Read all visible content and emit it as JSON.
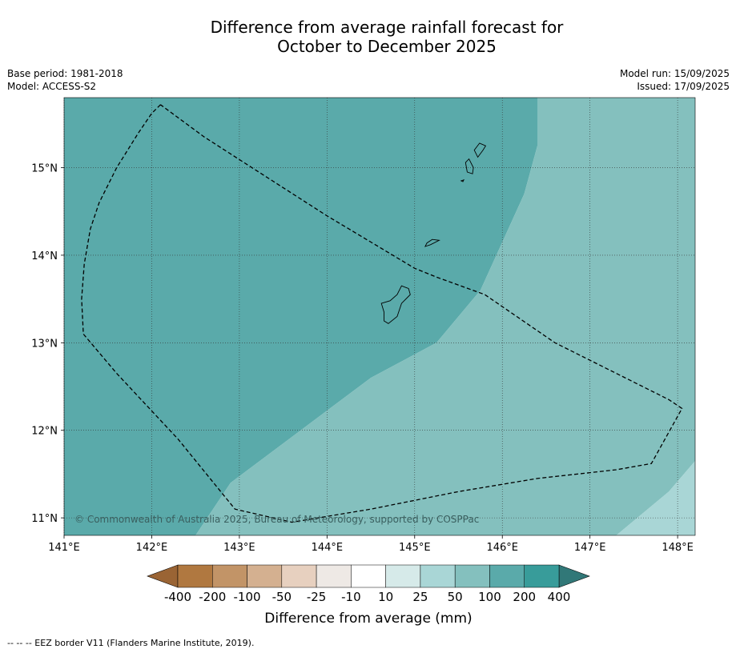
{
  "title_line1": "Difference from average rainfall forecast for",
  "title_line2": "October to December 2025",
  "base_period": "Base period: 1981-2018",
  "model": "Model: ACCESS-S2",
  "model_run": "Model run: 15/09/2025",
  "issued": "Issued: 17/09/2025",
  "copyright": "© Commonwealth of Australia 2025, Bureau of Meteorology, supported by COSPPac",
  "footer": "--  --  -- EEZ border V11 (Flanders Marine Institute, 2019).",
  "map": {
    "lon_range": [
      141,
      148.2
    ],
    "lat_range": [
      10.8,
      15.8
    ],
    "lon_ticks": [
      141,
      142,
      143,
      144,
      145,
      146,
      147,
      148
    ],
    "lon_labels": [
      "141°E",
      "142°E",
      "143°E",
      "144°E",
      "145°E",
      "146°E",
      "147°E",
      "148°E"
    ],
    "lat_ticks": [
      11,
      12,
      13,
      14,
      15
    ],
    "lat_labels": [
      "11°N",
      "12°N",
      "13°N",
      "14°N",
      "15°N"
    ],
    "grid": true,
    "colors": {
      "c100_200": "#5aaaaa",
      "c50_100": "#84c0be",
      "c25_50": "#a9d6d6"
    },
    "zones": [
      {
        "category": "100 to 200",
        "color_key": "c100_200",
        "polygon": [
          [
            141,
            10.8
          ],
          [
            141,
            15.8
          ],
          [
            146.4,
            15.8
          ],
          [
            146.4,
            15.25
          ],
          [
            146.25,
            14.7
          ],
          [
            145.75,
            13.6
          ],
          [
            145.25,
            13.0
          ],
          [
            144.5,
            12.6
          ],
          [
            143.7,
            12.0
          ],
          [
            142.9,
            11.4
          ],
          [
            142.5,
            10.8
          ]
        ]
      },
      {
        "category": "50 to 100",
        "color_key": "c50_100",
        "polygon": [
          [
            142.5,
            10.8
          ],
          [
            142.9,
            11.4
          ],
          [
            143.7,
            12.0
          ],
          [
            144.5,
            12.6
          ],
          [
            145.25,
            13.0
          ],
          [
            145.75,
            13.6
          ],
          [
            146.25,
            14.7
          ],
          [
            146.4,
            15.25
          ],
          [
            146.4,
            15.8
          ],
          [
            148.2,
            15.8
          ],
          [
            148.2,
            11.65
          ],
          [
            147.9,
            11.3
          ],
          [
            147.3,
            10.8
          ]
        ]
      },
      {
        "category": "25 to 50",
        "color_key": "c25_50",
        "polygon": [
          [
            147.3,
            10.8
          ],
          [
            147.9,
            11.3
          ],
          [
            148.2,
            11.65
          ],
          [
            148.2,
            10.8
          ]
        ]
      }
    ],
    "eez": [
      [
        142.1,
        15.72
      ],
      [
        142.0,
        15.62
      ],
      [
        141.85,
        15.4
      ],
      [
        141.6,
        15.0
      ],
      [
        141.4,
        14.6
      ],
      [
        141.3,
        14.3
      ],
      [
        141.23,
        13.9
      ],
      [
        141.2,
        13.5
      ],
      [
        141.22,
        13.1
      ],
      [
        141.6,
        12.65
      ],
      [
        142.3,
        11.9
      ],
      [
        142.95,
        11.1
      ],
      [
        143.6,
        10.95
      ],
      [
        144.5,
        11.1
      ],
      [
        145.5,
        11.3
      ],
      [
        146.4,
        11.45
      ],
      [
        147.3,
        11.55
      ],
      [
        147.7,
        11.62
      ],
      [
        148.05,
        12.25
      ],
      [
        147.9,
        12.35
      ],
      [
        146.6,
        13.0
      ],
      [
        145.8,
        13.55
      ],
      [
        145.25,
        13.75
      ],
      [
        145.0,
        13.85
      ],
      [
        144.5,
        14.15
      ],
      [
        144.0,
        14.45
      ],
      [
        143.3,
        14.9
      ],
      [
        142.6,
        15.35
      ],
      [
        142.1,
        15.72
      ]
    ],
    "islands": [
      [
        [
          144.65,
          13.25
        ],
        [
          144.7,
          13.22
        ],
        [
          144.8,
          13.3
        ],
        [
          144.85,
          13.45
        ],
        [
          144.95,
          13.55
        ],
        [
          144.93,
          13.62
        ],
        [
          144.85,
          13.65
        ],
        [
          144.8,
          13.55
        ],
        [
          144.72,
          13.48
        ],
        [
          144.62,
          13.45
        ],
        [
          144.65,
          13.35
        ],
        [
          144.65,
          13.25
        ]
      ],
      [
        [
          145.12,
          14.1
        ],
        [
          145.18,
          14.12
        ],
        [
          145.28,
          14.17
        ],
        [
          145.2,
          14.18
        ],
        [
          145.14,
          14.14
        ],
        [
          145.12,
          14.1
        ]
      ],
      [
        [
          145.6,
          14.95
        ],
        [
          145.66,
          14.93
        ],
        [
          145.67,
          15.0
        ],
        [
          145.62,
          15.1
        ],
        [
          145.58,
          15.06
        ],
        [
          145.6,
          14.95
        ]
      ],
      [
        [
          145.72,
          15.12
        ],
        [
          145.78,
          15.2
        ],
        [
          145.81,
          15.25
        ],
        [
          145.74,
          15.28
        ],
        [
          145.68,
          15.2
        ],
        [
          145.72,
          15.12
        ]
      ],
      [
        [
          145.53,
          14.85
        ],
        [
          145.56,
          14.86
        ],
        [
          145.55,
          14.84
        ],
        [
          145.53,
          14.85
        ]
      ]
    ]
  },
  "colorbar": {
    "labels": [
      "-400",
      "-200",
      "-100",
      "-50",
      "-25",
      "-10",
      "10",
      "25",
      "50",
      "100",
      "200",
      "400"
    ],
    "colors": [
      "#b07840",
      "#c29467",
      "#d4b090",
      "#e7d0bf",
      "#eee9e5",
      "#ffffff",
      "#d6eae9",
      "#a9d6d6",
      "#84c0be",
      "#5aaaaa",
      "#389c9a"
    ],
    "under_color": "#9a6434",
    "over_color": "#317878",
    "label": "Difference from average (mm)"
  }
}
